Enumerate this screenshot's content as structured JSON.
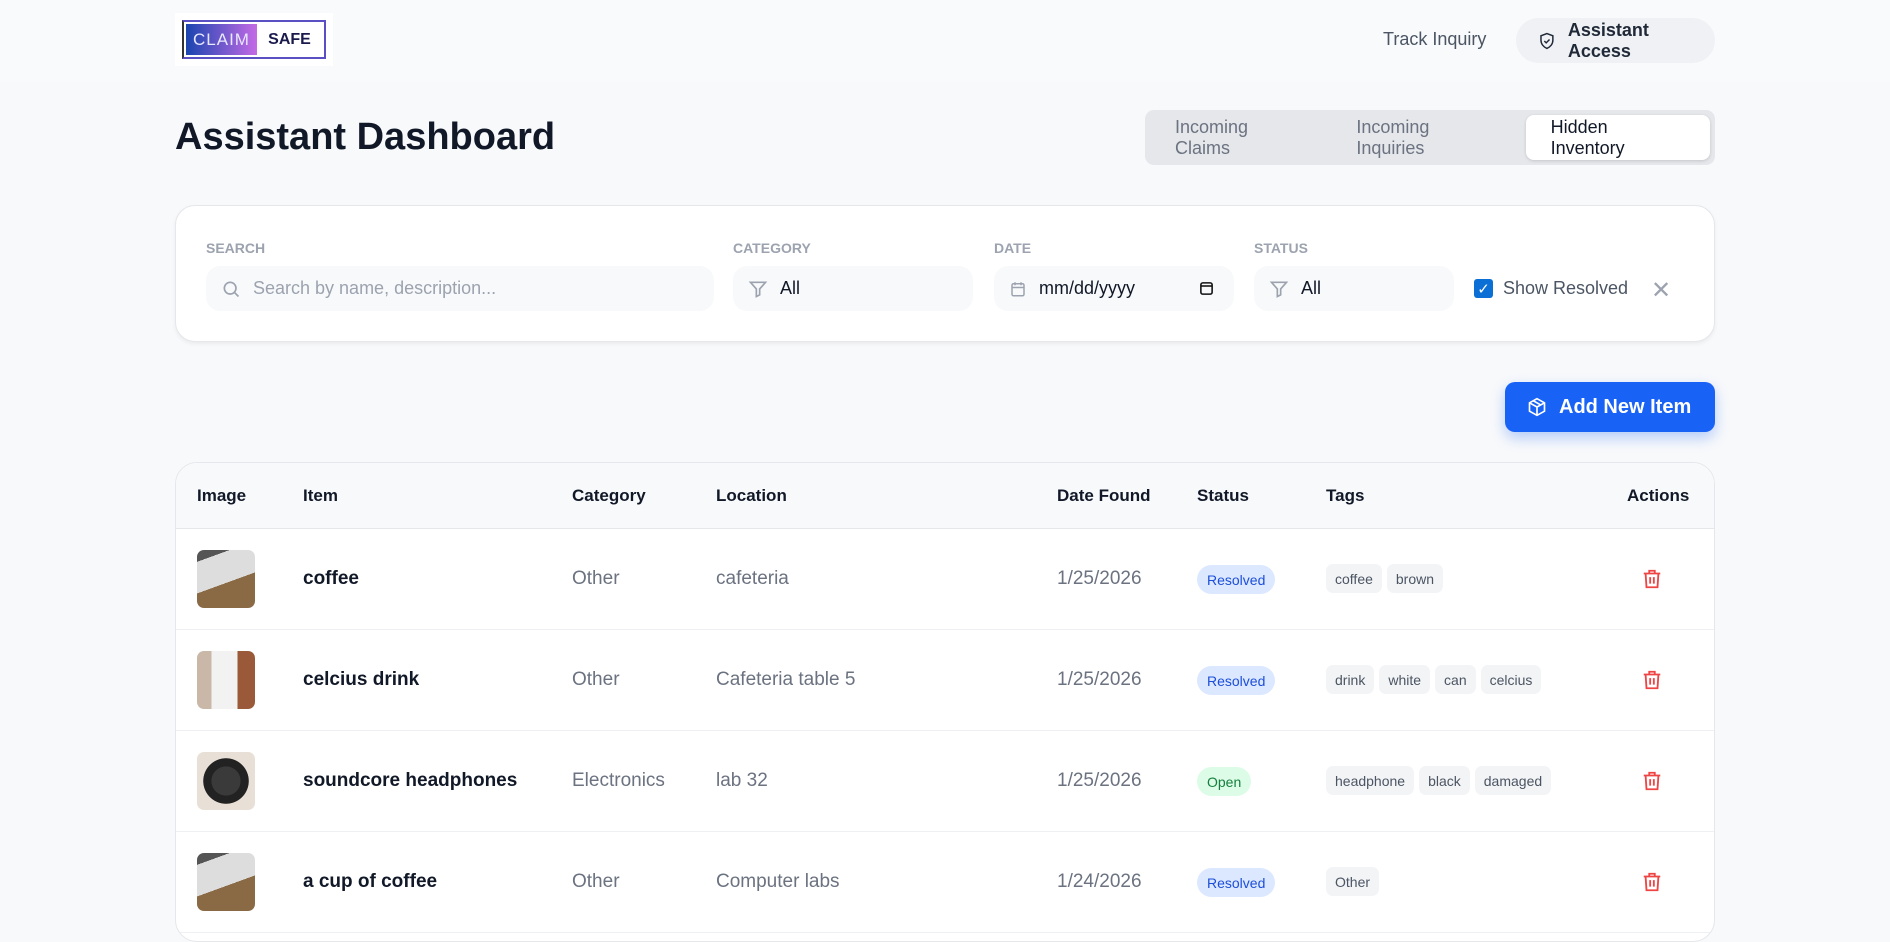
{
  "brand": {
    "logo_left": "CLAIM",
    "logo_right": "SAFE"
  },
  "nav": {
    "track": "Track Inquiry",
    "assistant": "Assistant Access"
  },
  "page": {
    "title": "Assistant Dashboard"
  },
  "tabs": [
    {
      "label": "Incoming Claims"
    },
    {
      "label": "Incoming Inquiries"
    },
    {
      "label": "Hidden Inventory",
      "active": true
    }
  ],
  "filters": {
    "search_label": "SEARCH",
    "search_placeholder": "Search by name, description...",
    "category_label": "CATEGORY",
    "category_value": "All",
    "date_label": "DATE",
    "date_placeholder": "mm/dd/yyyy",
    "status_label": "STATUS",
    "status_value": "All",
    "show_resolved": "Show Resolved",
    "show_resolved_checked": true
  },
  "add_button": "Add New Item",
  "table": {
    "headers": {
      "image": "Image",
      "item": "Item",
      "category": "Category",
      "location": "Location",
      "date": "Date Found",
      "status": "Status",
      "tags": "Tags",
      "actions": "Actions"
    },
    "rows": [
      {
        "item": "coffee",
        "category": "Other",
        "location": "cafeteria",
        "date": "1/25/2026",
        "status": "Resolved",
        "tags": [
          "coffee",
          "brown"
        ]
      },
      {
        "item": "celcius drink",
        "category": "Other",
        "location": "Cafeteria table 5",
        "date": "1/25/2026",
        "status": "Resolved",
        "tags": [
          "drink",
          "white",
          "can",
          "celcius"
        ]
      },
      {
        "item": "soundcore headphones",
        "category": "Electronics",
        "location": "lab 32",
        "date": "1/25/2026",
        "status": "Open",
        "tags": [
          "headphone",
          "black",
          "damaged"
        ]
      },
      {
        "item": "a cup of coffee",
        "category": "Other",
        "location": "Computer labs",
        "date": "1/24/2026",
        "status": "Resolved",
        "tags": [
          "Other"
        ]
      }
    ]
  },
  "colors": {
    "accent": "#1862f5",
    "resolved_bg": "#dbe8ff",
    "resolved_fg": "#1d4ed8",
    "open_bg": "#dcfce7",
    "open_fg": "#15803d",
    "delete": "#ef4444"
  }
}
